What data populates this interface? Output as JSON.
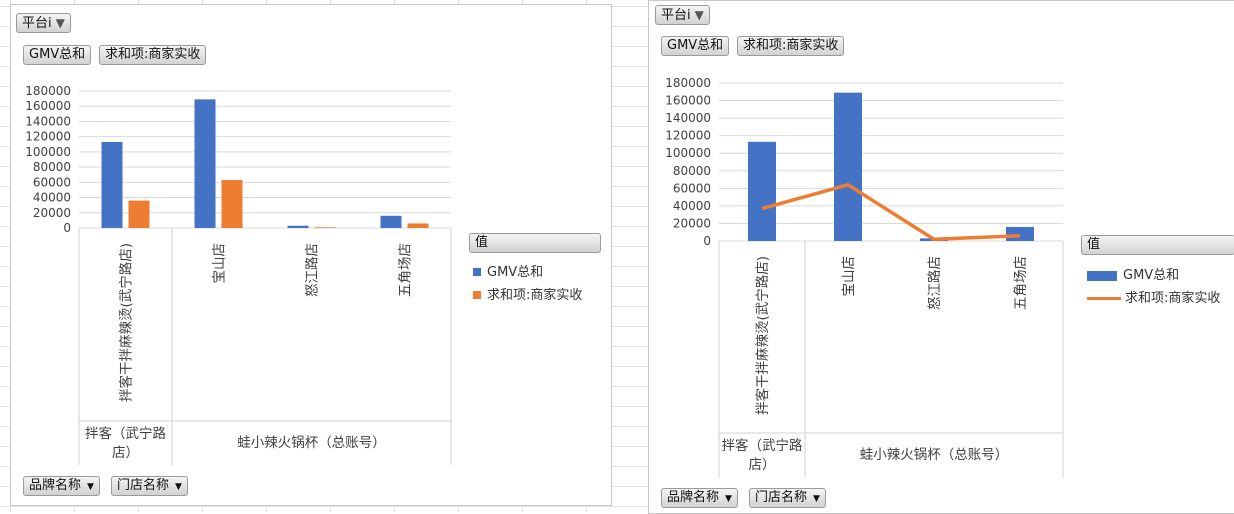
{
  "colors": {
    "series_bar": "#4472c4",
    "series_orange": "#ed7d31"
  },
  "left_panel": {
    "filter_button": "平台i",
    "value_buttons": [
      "GMV总和",
      "求和项:商家实收"
    ],
    "axis_buttons": [
      "品牌名称",
      "门店名称"
    ],
    "legend_title": "值",
    "legend_items": [
      "GMV总和",
      "求和项:商家实收"
    ]
  },
  "right_panel": {
    "filter_button": "平台i",
    "value_buttons": [
      "GMV总和",
      "求和项:商家实收"
    ],
    "axis_buttons": [
      "品牌名称",
      "门店名称"
    ],
    "legend_title": "值",
    "legend_items": [
      "GMV总和",
      "求和项:商家实收"
    ]
  },
  "chart_data": [
    {
      "type": "bar",
      "categories": [
        "拌客干拌麻辣烫(武宁路店)",
        "宝山店",
        "怒江路店",
        "五角场店"
      ],
      "groups": [
        {
          "label": "拌客（武宁路店）",
          "span": 1
        },
        {
          "label": "蛙小辣火锅杯（总账号）",
          "span": 3
        }
      ],
      "series": [
        {
          "name": "GMV总和",
          "values": [
            113000,
            169000,
            3000,
            16000
          ]
        },
        {
          "name": "求和项:商家实收",
          "values": [
            36000,
            63000,
            1000,
            6000
          ]
        }
      ],
      "ylim": [
        0,
        180000
      ],
      "yticks": [
        "0",
        "20000",
        "40000",
        "60000",
        "80000",
        "100000",
        "120000",
        "140000",
        "160000",
        "180000"
      ],
      "grid": true,
      "legend": "right"
    },
    {
      "type": "bar+line",
      "categories": [
        "拌客干拌麻辣烫(武宁路店)",
        "宝山店",
        "怒江路店",
        "五角场店"
      ],
      "groups": [
        {
          "label": "拌客（武宁路店）",
          "span": 1
        },
        {
          "label": "蛙小辣火锅杯（总账号）",
          "span": 3
        }
      ],
      "series": [
        {
          "name": "GMV总和",
          "type": "bar",
          "values": [
            113000,
            169000,
            3000,
            16000
          ]
        },
        {
          "name": "求和项:商家实收",
          "type": "line",
          "values": [
            37000,
            64000,
            2000,
            6000
          ]
        }
      ],
      "ylim": [
        0,
        180000
      ],
      "yticks": [
        "0",
        "20000",
        "40000",
        "60000",
        "80000",
        "100000",
        "120000",
        "140000",
        "160000",
        "180000"
      ],
      "grid": true,
      "legend": "right"
    }
  ]
}
